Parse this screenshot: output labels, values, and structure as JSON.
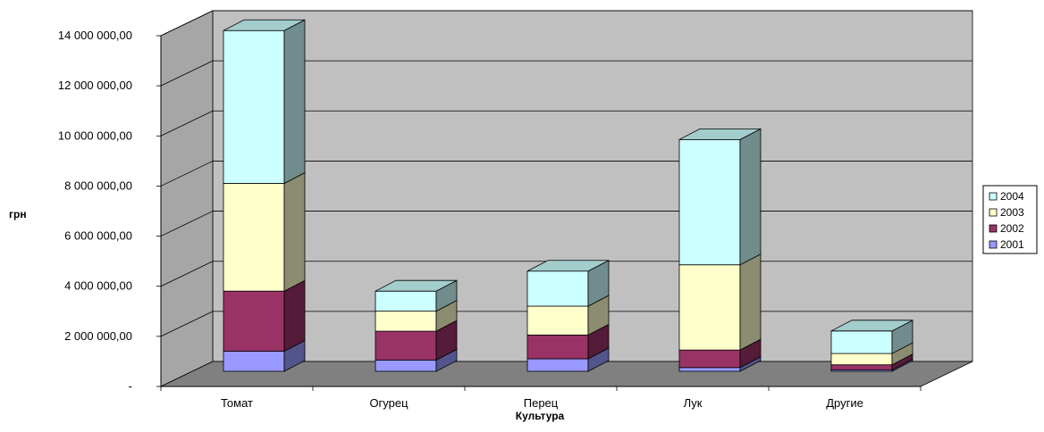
{
  "chart_data": {
    "type": "bar",
    "stacked": true,
    "three_d": true,
    "title": "",
    "xlabel": "Культура",
    "ylabel": "грн",
    "ylim": [
      0,
      14000000
    ],
    "y_ticks": [
      "-",
      "2 000 000,00",
      "4 000 000,00",
      "6 000 000,00",
      "8 000 000,00",
      "10 000 000,00",
      "12 000 000,00",
      "14 000 000,00"
    ],
    "categories": [
      "Томат",
      "Огурец",
      "Перец",
      "Лук",
      "Другие"
    ],
    "series": [
      {
        "name": "2001",
        "values": [
          800000,
          450000,
          500000,
          150000,
          60000
        ],
        "color": "#9999ff"
      },
      {
        "name": "2002",
        "values": [
          2400000,
          1150000,
          950000,
          700000,
          200000
        ],
        "color": "#993366"
      },
      {
        "name": "2003",
        "values": [
          4300000,
          800000,
          1150000,
          3400000,
          450000
        ],
        "color": "#ffffcc"
      },
      {
        "name": "2004",
        "values": [
          6100000,
          800000,
          1400000,
          5000000,
          900000
        ],
        "color": "#ccffff"
      }
    ],
    "legend_position": "right",
    "grid": true,
    "wall_color": "#c0c0c0",
    "floor_color": "#808080"
  }
}
